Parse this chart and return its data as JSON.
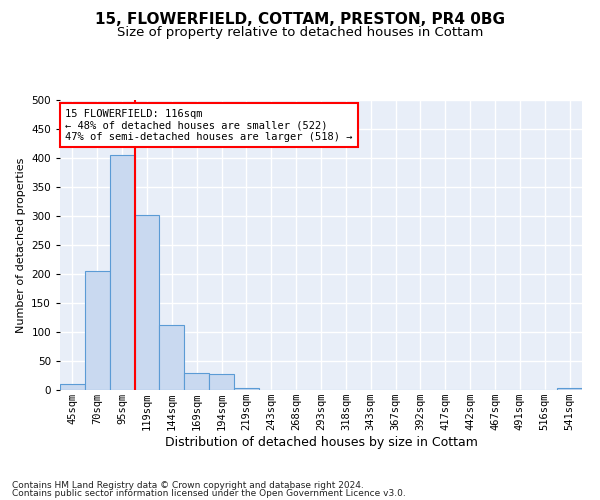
{
  "title": "15, FLOWERFIELD, COTTAM, PRESTON, PR4 0BG",
  "subtitle": "Size of property relative to detached houses in Cottam",
  "xlabel": "Distribution of detached houses by size in Cottam",
  "ylabel": "Number of detached properties",
  "bar_labels": [
    "45sqm",
    "70sqm",
    "95sqm",
    "119sqm",
    "144sqm",
    "169sqm",
    "194sqm",
    "219sqm",
    "243sqm",
    "268sqm",
    "293sqm",
    "318sqm",
    "343sqm",
    "367sqm",
    "392sqm",
    "417sqm",
    "442sqm",
    "467sqm",
    "491sqm",
    "516sqm",
    "541sqm"
  ],
  "bar_values": [
    10,
    205,
    405,
    302,
    112,
    30,
    27,
    3,
    0,
    0,
    0,
    0,
    0,
    0,
    0,
    0,
    0,
    0,
    0,
    0,
    3
  ],
  "bar_color": "#c9d9f0",
  "bar_edge_color": "#5b9bd5",
  "vline_color": "red",
  "annotation_text": "15 FLOWERFIELD: 116sqm\n← 48% of detached houses are smaller (522)\n47% of semi-detached houses are larger (518) →",
  "annotation_box_color": "white",
  "annotation_box_edge": "red",
  "ylim": [
    0,
    500
  ],
  "yticks": [
    0,
    50,
    100,
    150,
    200,
    250,
    300,
    350,
    400,
    450,
    500
  ],
  "footer_line1": "Contains HM Land Registry data © Crown copyright and database right 2024.",
  "footer_line2": "Contains public sector information licensed under the Open Government Licence v3.0.",
  "bg_color": "#e8eef8",
  "grid_color": "#ffffff",
  "title_fontsize": 11,
  "subtitle_fontsize": 9.5,
  "xlabel_fontsize": 9,
  "ylabel_fontsize": 8,
  "tick_fontsize": 7.5,
  "footer_fontsize": 6.5,
  "vline_bar_index": 2
}
